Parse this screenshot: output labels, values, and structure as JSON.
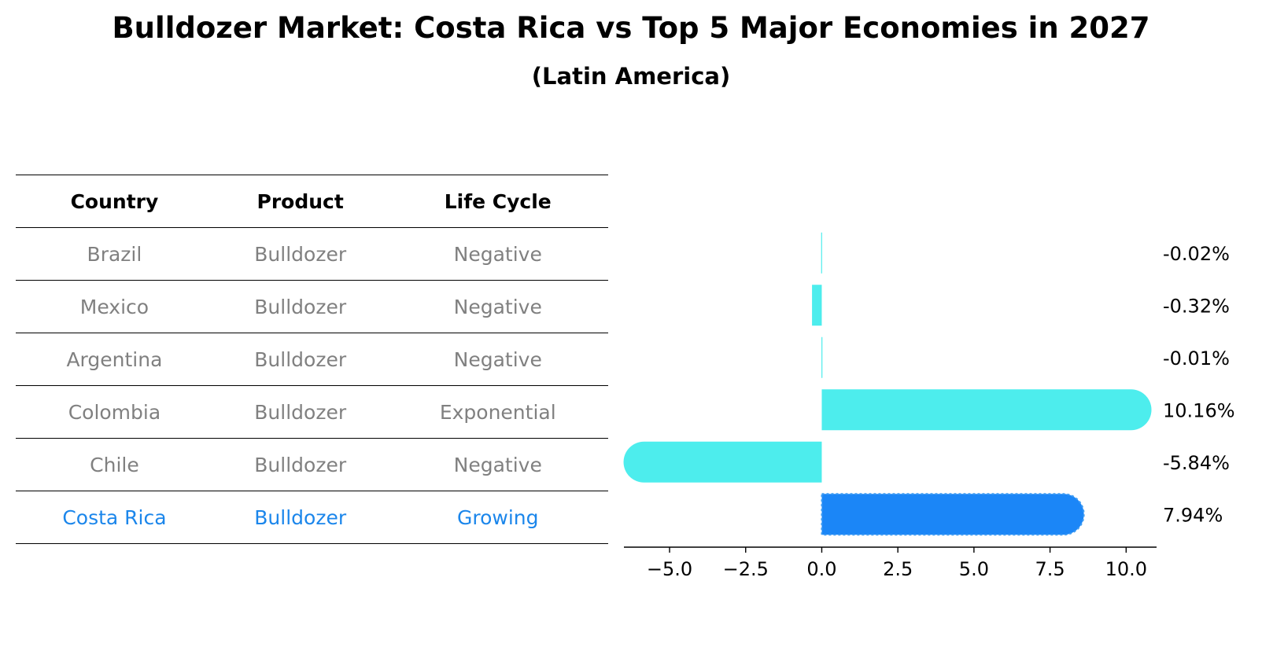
{
  "title": "Bulldozer Market: Costa Rica vs Top 5 Major Economies in 2027",
  "subtitle": "(Latin America)",
  "table": {
    "headers": [
      "Country",
      "Product",
      "Life Cycle"
    ],
    "rows": [
      {
        "country": "Brazil",
        "product": "Bulldozer",
        "life_cycle": "Negative"
      },
      {
        "country": "Mexico",
        "product": "Bulldozer",
        "life_cycle": "Negative"
      },
      {
        "country": "Argentina",
        "product": "Bulldozer",
        "life_cycle": "Negative"
      },
      {
        "country": "Colombia",
        "product": "Bulldozer",
        "life_cycle": "Exponential"
      },
      {
        "country": "Chile",
        "product": "Bulldozer",
        "life_cycle": "Negative"
      },
      {
        "country": "Costa Rica",
        "product": "Bulldozer",
        "life_cycle": "Growing"
      }
    ]
  },
  "chart_data": {
    "type": "bar",
    "orientation": "horizontal",
    "title": "Bulldozer Market: Costa Rica vs Top 5 Major Economies in 2027",
    "subtitle": "(Latin America)",
    "categories": [
      "Brazil",
      "Mexico",
      "Argentina",
      "Colombia",
      "Chile",
      "Costa Rica"
    ],
    "values": [
      -0.02,
      -0.32,
      -0.01,
      10.16,
      -5.84,
      7.94
    ],
    "labels": [
      "-0.02%",
      "-0.32%",
      "-0.01%",
      "10.16%",
      "-5.84%",
      "7.94%"
    ],
    "highlight": "Costa Rica",
    "xlim": [
      -6.5,
      11
    ],
    "xticks": [
      -5.0,
      -2.5,
      0.0,
      2.5,
      5.0,
      7.5,
      10.0
    ],
    "xtick_labels": [
      "−5.0",
      "−2.5",
      "0.0",
      "2.5",
      "5.0",
      "7.5",
      "10.0"
    ],
    "xlabel": "",
    "ylabel": "",
    "grid": false,
    "colors": {
      "bar": "#4deded",
      "highlight": "#1b86f7"
    }
  }
}
